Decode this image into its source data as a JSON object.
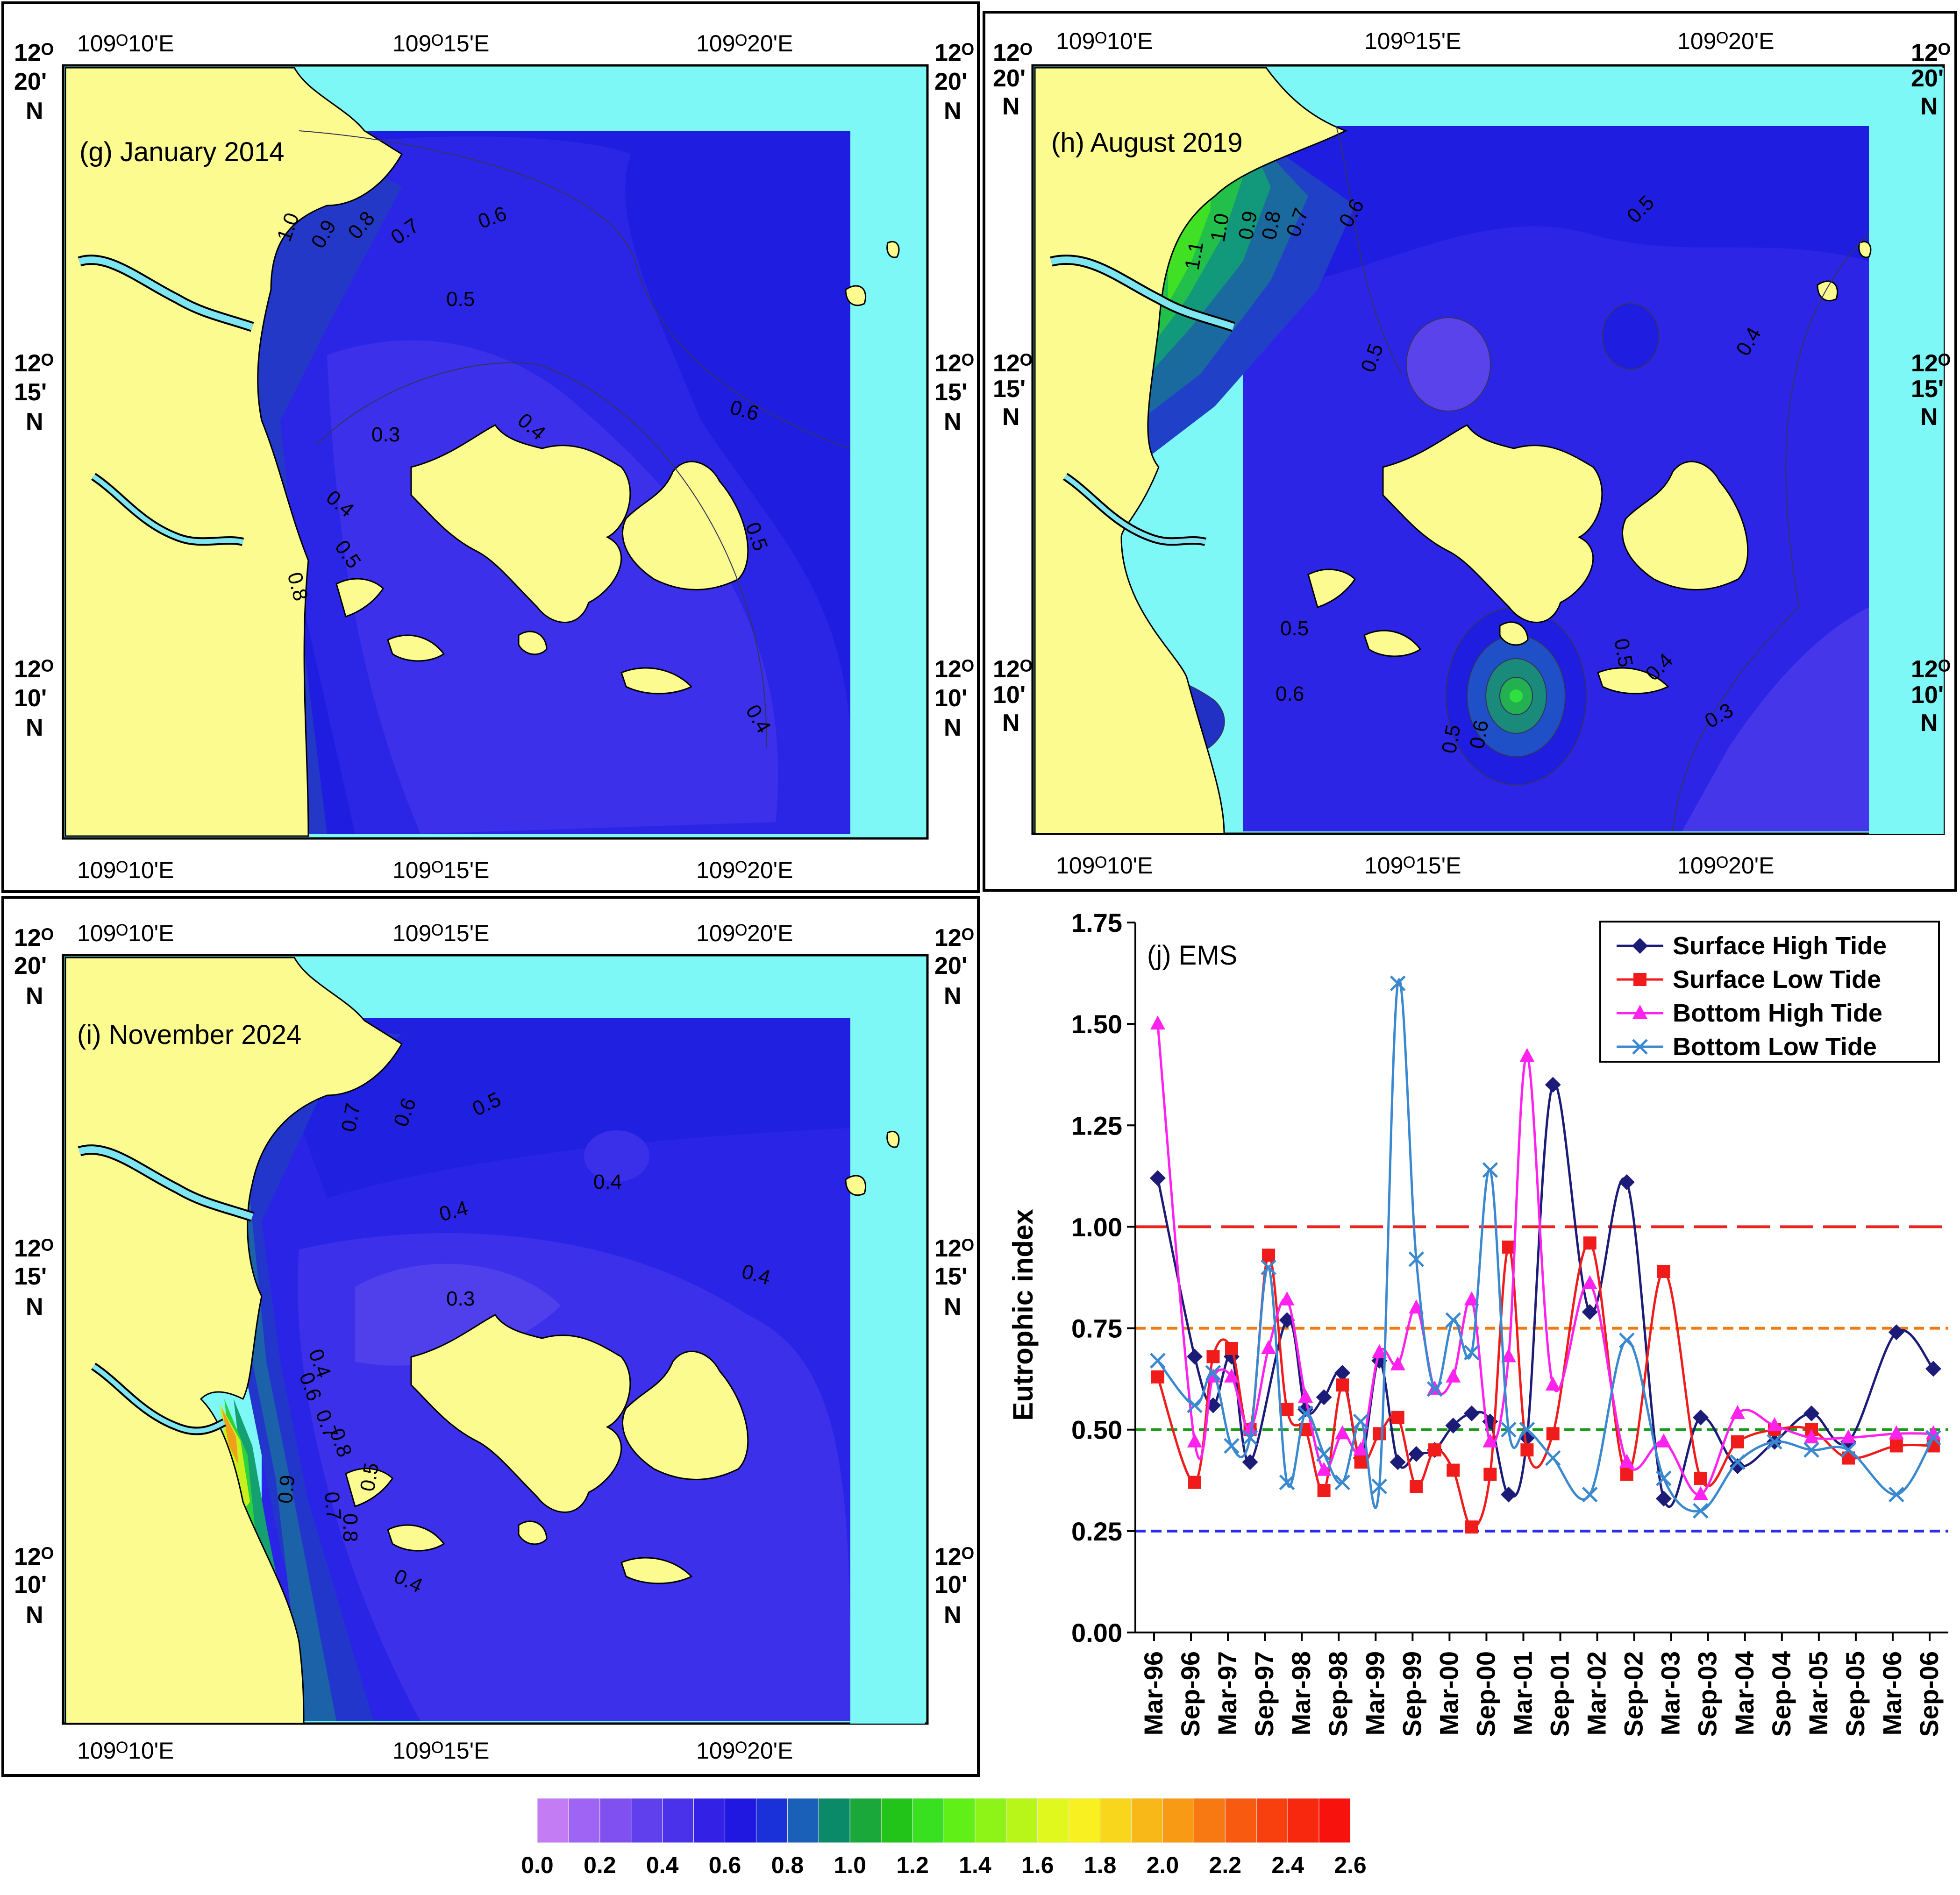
{
  "colors": {
    "land": "#fbfb8f",
    "sea_edge": "#7ef7f7",
    "river": "#7de6f0",
    "contour_line": "#33335c",
    "hline_red": "#e8241c",
    "hline_orange": "#f07a10",
    "hline_green": "#1c9a1c",
    "hline_blue": "#2c2cf0",
    "series_surface_high": "#1c1c78",
    "series_surface_low": "#f01c1c",
    "series_bottom_high": "#ff22ee",
    "series_bottom_low": "#3a88d0"
  },
  "axes_labels": {
    "lat_top_a": "12ᴼ",
    "lat_top_b": "20'",
    "lat_top_c": "N",
    "lat_mid_a": "12ᴼ",
    "lat_mid_b": "15'",
    "lat_mid_c": "N",
    "lat_bot_a": "12ᴼ",
    "lat_bot_b": "10'",
    "lat_bot_c": "N",
    "lon_1": "109ᴼ10'E",
    "lon_2": "109ᴼ15'E",
    "lon_3": "109ᴼ20'E"
  },
  "maps": {
    "g": {
      "title": "(g) January 2014",
      "labels": [
        "1.0",
        "0.9",
        "0.8",
        "0.7",
        "0.6",
        "0.5",
        "0.4",
        "0.3",
        "0.6",
        "0.4",
        "0.5",
        "0.5",
        "0.4",
        "0.8"
      ]
    },
    "h": {
      "title": "(h) August 2019",
      "labels": [
        "1.1",
        "1.0",
        "0.9",
        "0.8",
        "0.7",
        "0.6",
        "0.5",
        "0.5",
        "0.4",
        "0.5",
        "0.6",
        "0.5",
        "0.6",
        "0.5",
        "0.4",
        "0.3"
      ]
    },
    "i": {
      "title": "(i) November 2024",
      "labels": [
        "0.7",
        "0.6",
        "0.5",
        "0.4",
        "0.4",
        "0.4",
        "0.3",
        "0.4",
        "0.6",
        "0.7",
        "0.8",
        "0.9",
        "0.8",
        "0.7",
        "0.5",
        "0.4"
      ]
    }
  },
  "colorbar": {
    "ticks": [
      "0.0",
      "0.2",
      "0.4",
      "0.6",
      "0.8",
      "1.0",
      "1.2",
      "1.4",
      "1.6",
      "1.8",
      "2.0",
      "2.2",
      "2.4",
      "2.6"
    ],
    "colors": [
      "#c47cf4",
      "#a064f4",
      "#8050f0",
      "#6040ec",
      "#4a32ea",
      "#3322e6",
      "#2018e0",
      "#1a30d8",
      "#1a60b8",
      "#0b8a6a",
      "#1ba83a",
      "#22c41a",
      "#38e020",
      "#60f018",
      "#8ef418",
      "#b8f61a",
      "#e0f81e",
      "#f8f020",
      "#f8d61c",
      "#f8b818",
      "#f89a14",
      "#f87812",
      "#f85a10",
      "#f8400e",
      "#f8280e",
      "#f8120e"
    ]
  },
  "chart_data": {
    "type": "line",
    "title": "(j) EMS",
    "ylabel": "Eutrophic index",
    "xlabel": "",
    "ylim": [
      0,
      1.75
    ],
    "yticks": [
      "0.00",
      "0.25",
      "0.50",
      "0.75",
      "1.00",
      "1.25",
      "1.50",
      "1.75"
    ],
    "ytick_values": [
      0,
      0.25,
      0.5,
      0.75,
      1.0,
      1.25,
      1.5,
      1.75
    ],
    "categories": [
      "Mar-96",
      "Sep-96",
      "Mar-97",
      "Sep-97",
      "Mar-98",
      "Sep-98",
      "Mar-99",
      "Sep-99",
      "Mar-00",
      "Sep-00",
      "Mar-01",
      "Sep-01",
      "Mar-02",
      "Sep-02",
      "Mar-03",
      "Sep-03",
      "Mar-04",
      "Sep-04",
      "Mar-05",
      "Sep-05",
      "Mar-06",
      "Sep-06"
    ],
    "x_range": [
      0,
      21
    ],
    "legend_position": "top-right",
    "thresholds": [
      {
        "value": 1.0,
        "color_key": "hline_red",
        "dash": "long"
      },
      {
        "value": 0.75,
        "color_key": "hline_orange",
        "dash": "short"
      },
      {
        "value": 0.5,
        "color_key": "hline_green",
        "dash": "short"
      },
      {
        "value": 0.25,
        "color_key": "hline_blue",
        "dash": "short"
      }
    ],
    "series": [
      {
        "name": "Surface High Tide",
        "color_key": "series_surface_high",
        "marker": "diamond",
        "x": [
          0.1,
          1.1,
          1.6,
          2.1,
          2.6,
          3.6,
          4.1,
          4.6,
          5.1,
          5.6,
          6.1,
          6.6,
          7.1,
          7.6,
          8.1,
          8.6,
          9.1,
          9.6,
          10.1,
          10.8,
          11.8,
          12.8,
          13.8,
          14.8,
          15.8,
          16.8,
          17.8,
          18.8,
          20.1,
          21.1
        ],
        "y": [
          1.12,
          0.68,
          0.56,
          0.68,
          0.42,
          0.77,
          0.55,
          0.58,
          0.64,
          0.43,
          0.67,
          0.42,
          0.44,
          0.45,
          0.51,
          0.54,
          0.52,
          0.34,
          0.48,
          1.35,
          0.79,
          1.11,
          0.33,
          0.53,
          0.41,
          0.47,
          0.54,
          0.47,
          0.74,
          0.65
        ]
      },
      {
        "name": "Surface Low Tide",
        "color_key": "series_surface_low",
        "marker": "square",
        "x": [
          0.1,
          1.1,
          1.6,
          2.1,
          2.6,
          3.1,
          3.6,
          4.1,
          4.6,
          5.1,
          5.6,
          6.1,
          6.6,
          7.1,
          7.6,
          8.1,
          8.6,
          9.1,
          9.6,
          10.1,
          10.8,
          11.8,
          12.8,
          13.8,
          14.8,
          15.8,
          16.8,
          17.8,
          18.8,
          20.1,
          21.1
        ],
        "y": [
          0.63,
          0.37,
          0.68,
          0.7,
          0.5,
          0.93,
          0.55,
          0.5,
          0.35,
          0.61,
          0.42,
          0.49,
          0.53,
          0.36,
          0.45,
          0.4,
          0.26,
          0.39,
          0.95,
          0.45,
          0.49,
          0.96,
          0.39,
          0.89,
          0.38,
          0.47,
          0.5,
          0.5,
          0.43,
          0.46,
          0.46
        ]
      },
      {
        "name": "Bottom High Tide",
        "color_key": "series_bottom_high",
        "marker": "triangle",
        "x": [
          0.1,
          1.1,
          1.6,
          2.1,
          2.6,
          3.1,
          3.6,
          4.1,
          4.6,
          5.1,
          5.6,
          6.1,
          6.6,
          7.1,
          7.6,
          8.1,
          8.6,
          9.1,
          9.6,
          10.1,
          10.8,
          11.8,
          12.8,
          13.8,
          14.8,
          15.8,
          16.8,
          17.8,
          18.8,
          20.1,
          21.1
        ],
        "y": [
          1.5,
          0.47,
          0.63,
          0.63,
          0.5,
          0.7,
          0.82,
          0.58,
          0.4,
          0.49,
          0.45,
          0.69,
          0.66,
          0.8,
          0.6,
          0.63,
          0.82,
          0.47,
          0.68,
          1.42,
          0.61,
          0.86,
          0.42,
          0.47,
          0.34,
          0.54,
          0.51,
          0.48,
          0.48,
          0.49,
          0.49
        ]
      },
      {
        "name": "Bottom Low Tide",
        "color_key": "series_bottom_low",
        "marker": "x",
        "x": [
          0.1,
          1.1,
          1.6,
          2.1,
          2.6,
          3.1,
          3.6,
          4.1,
          4.6,
          5.1,
          5.6,
          6.1,
          6.6,
          7.1,
          7.6,
          8.1,
          8.6,
          9.1,
          9.6,
          10.1,
          10.8,
          11.8,
          12.8,
          13.8,
          14.8,
          15.8,
          16.8,
          17.8,
          18.8,
          20.1,
          21.1
        ],
        "y": [
          0.67,
          0.56,
          0.64,
          0.46,
          0.48,
          0.9,
          0.37,
          0.54,
          0.44,
          0.37,
          0.52,
          0.36,
          1.6,
          0.92,
          0.6,
          0.77,
          0.69,
          1.14,
          0.5,
          0.5,
          0.43,
          0.34,
          0.72,
          0.38,
          0.3,
          0.42,
          0.47,
          0.45,
          0.45,
          0.34,
          0.48
        ]
      }
    ]
  }
}
